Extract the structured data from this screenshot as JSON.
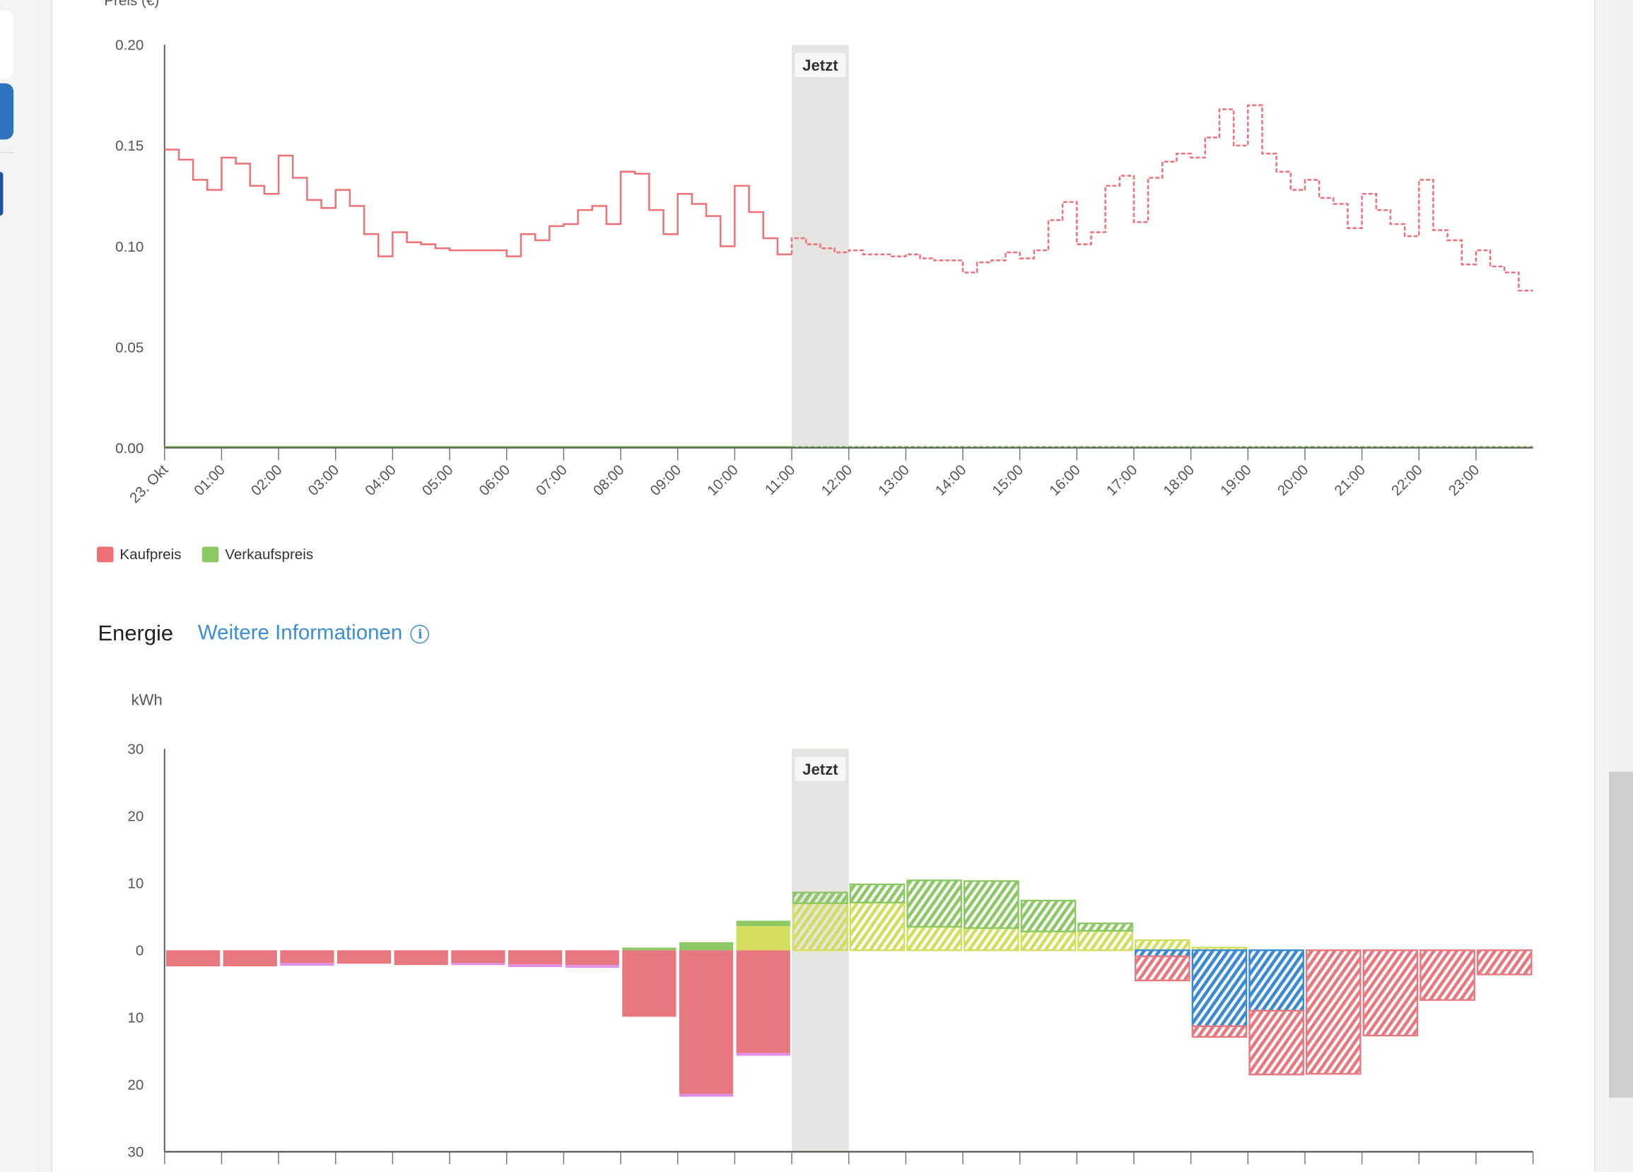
{
  "colors": {
    "buy": "#f07078",
    "sell": "#8cc864",
    "link": "#3a8fd8",
    "now_band": "#e5e4e1"
  },
  "price_section": {
    "y_axis_label": "Preis (€)",
    "legend": [
      {
        "label": "Kaufpreis",
        "color": "#f07078"
      },
      {
        "label": "Verkaufspreis",
        "color": "#8cc864"
      }
    ]
  },
  "energy_section": {
    "title": "Energie",
    "link_label": "Weitere Informationen",
    "info_icon": "i",
    "unit_label": "kWh"
  },
  "chart_data": [
    {
      "type": "line",
      "title": "",
      "ylabel": "Preis (€)",
      "ylim": [
        0,
        0.2
      ],
      "yticks": [
        "0.20",
        "0.15",
        "0.10",
        "0.05",
        "0.00"
      ],
      "ytick_values": [
        0.2,
        0.15,
        0.1,
        0.05,
        0
      ],
      "xtick_labels": [
        "23. Okt",
        "01:00",
        "02:00",
        "03:00",
        "04:00",
        "05:00",
        "06:00",
        "07:00",
        "08:00",
        "09:00",
        "10:00",
        "11:00",
        "12:00",
        "13:00",
        "14:00",
        "15:00",
        "16:00",
        "17:00",
        "18:00",
        "19:00",
        "20:00",
        "21:00",
        "22:00",
        "23:00"
      ],
      "interval_minutes": 15,
      "now_label": "Jetzt",
      "now_hour": 11,
      "forecast_from_index": 44,
      "series": [
        {
          "name": "Kaufpreis",
          "color": "#f07078",
          "values": [
            0.148,
            0.143,
            0.133,
            0.128,
            0.144,
            0.141,
            0.13,
            0.126,
            0.145,
            0.134,
            0.123,
            0.119,
            0.128,
            0.12,
            0.106,
            0.095,
            0.107,
            0.102,
            0.101,
            0.099,
            0.098,
            0.098,
            0.098,
            0.098,
            0.095,
            0.106,
            0.103,
            0.11,
            0.111,
            0.118,
            0.12,
            0.111,
            0.137,
            0.136,
            0.118,
            0.106,
            0.126,
            0.121,
            0.115,
            0.1,
            0.13,
            0.117,
            0.104,
            0.096,
            0.104,
            0.101,
            0.099,
            0.097,
            0.098,
            0.096,
            0.096,
            0.095,
            0.096,
            0.094,
            0.093,
            0.093,
            0.087,
            0.092,
            0.093,
            0.097,
            0.094,
            0.098,
            0.113,
            0.122,
            0.101,
            0.107,
            0.13,
            0.135,
            0.112,
            0.134,
            0.142,
            0.146,
            0.144,
            0.154,
            0.168,
            0.15,
            0.17,
            0.146,
            0.137,
            0.128,
            0.133,
            0.124,
            0.121,
            0.109,
            0.126,
            0.118,
            0.111,
            0.105,
            0.133,
            0.108,
            0.103,
            0.091,
            0.098,
            0.09,
            0.087,
            0.078
          ]
        },
        {
          "name": "Verkaufspreis",
          "color": "#8cc864",
          "values": "all 0.00"
        }
      ]
    },
    {
      "type": "bar",
      "stacked": true,
      "ylabel": "kWh",
      "ylim": [
        -30,
        30
      ],
      "yticks": [
        "30",
        "20",
        "10",
        "0",
        "10",
        "20",
        "30"
      ],
      "ytick_values": [
        30,
        20,
        10,
        0,
        -10,
        -20,
        -30
      ],
      "hours": 24,
      "now_label": "Jetzt",
      "now_hour": 11,
      "forecast_from_hour": 11,
      "series": [
        {
          "color": "#d4de5e",
          "values": [
            0,
            0,
            0,
            0,
            0,
            0,
            0,
            0,
            0,
            0,
            3.6,
            7.0,
            7.1,
            3.5,
            3.3,
            2.8,
            2.9,
            1.5,
            0.4,
            0,
            0,
            0,
            0,
            0
          ]
        },
        {
          "color": "#8cc864",
          "values": [
            0,
            0,
            0,
            0,
            0,
            0,
            0,
            0,
            0.4,
            1.2,
            0.8,
            1.6,
            2.7,
            6.9,
            7.0,
            4.6,
            1.1,
            0,
            0,
            0,
            0,
            0,
            0,
            0
          ]
        },
        {
          "color": "#3a8ad4",
          "values": [
            0,
            0,
            0,
            0,
            0,
            0,
            0,
            0,
            0,
            0,
            0,
            0,
            0,
            0,
            0,
            0,
            0,
            -0.9,
            -11.3,
            -9.0,
            0,
            0,
            0,
            0
          ]
        },
        {
          "color": "#e87880",
          "values": [
            -2.4,
            -2.4,
            -1.9,
            -2.0,
            -2.2,
            -1.9,
            -2.1,
            -2.2,
            -9.9,
            -21.4,
            -15.3,
            0,
            0,
            0,
            0,
            0,
            0,
            -3.6,
            -1.6,
            -9.5,
            -18.4,
            -12.7,
            -7.4,
            -3.6
          ]
        },
        {
          "color": "#e08ce8",
          "values": [
            0,
            0,
            -0.4,
            0,
            0,
            -0.3,
            -0.4,
            -0.4,
            0,
            -0.4,
            -0.4,
            0,
            0,
            0,
            0,
            0,
            0,
            0,
            0,
            0,
            0,
            0,
            0,
            0
          ]
        }
      ]
    }
  ]
}
